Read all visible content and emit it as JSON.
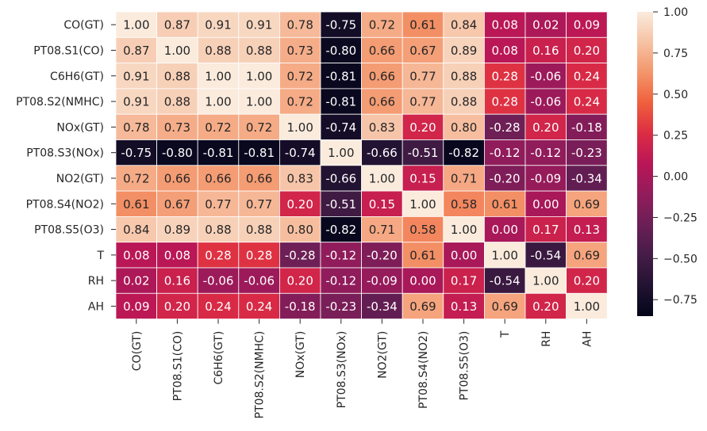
{
  "chart_data": {
    "type": "heatmap",
    "title": "",
    "variables": [
      "CO(GT)",
      "PT08.S1(CO)",
      "C6H6(GT)",
      "PT08.S2(NMHC)",
      "NOx(GT)",
      "PT08.S3(NOx)",
      "NO2(GT)",
      "PT08.S4(NO2)",
      "PT08.S5(O3)",
      "T",
      "RH",
      "AH"
    ],
    "matrix": [
      [
        1.0,
        0.87,
        0.91,
        0.91,
        0.78,
        -0.75,
        0.72,
        0.61,
        0.84,
        0.08,
        0.02,
        0.09
      ],
      [
        0.87,
        1.0,
        0.88,
        0.88,
        0.73,
        -0.8,
        0.66,
        0.67,
        0.89,
        0.08,
        0.16,
        0.2
      ],
      [
        0.91,
        0.88,
        1.0,
        1.0,
        0.72,
        -0.81,
        0.66,
        0.77,
        0.88,
        0.28,
        -0.06,
        0.24
      ],
      [
        0.91,
        0.88,
        1.0,
        1.0,
        0.72,
        -0.81,
        0.66,
        0.77,
        0.88,
        0.28,
        -0.06,
        0.24
      ],
      [
        0.78,
        0.73,
        0.72,
        0.72,
        1.0,
        -0.74,
        0.83,
        0.2,
        0.8,
        -0.28,
        0.2,
        -0.18
      ],
      [
        -0.75,
        -0.8,
        -0.81,
        -0.81,
        -0.74,
        1.0,
        -0.66,
        -0.51,
        -0.82,
        -0.12,
        -0.12,
        -0.23
      ],
      [
        0.72,
        0.66,
        0.66,
        0.66,
        0.83,
        -0.66,
        1.0,
        0.15,
        0.71,
        -0.2,
        -0.09,
        -0.34
      ],
      [
        0.61,
        0.67,
        0.77,
        0.77,
        0.2,
        -0.51,
        0.15,
        1.0,
        0.58,
        0.61,
        -0.0,
        0.69
      ],
      [
        0.84,
        0.89,
        0.88,
        0.88,
        0.8,
        -0.82,
        0.71,
        0.58,
        1.0,
        -0.0,
        0.17,
        0.13
      ],
      [
        0.08,
        0.08,
        0.28,
        0.28,
        -0.28,
        -0.12,
        -0.2,
        0.61,
        -0.0,
        1.0,
        -0.54,
        0.69
      ],
      [
        0.02,
        0.16,
        -0.06,
        -0.06,
        0.2,
        -0.12,
        -0.09,
        -0.0,
        0.17,
        -0.54,
        1.0,
        0.2
      ],
      [
        0.09,
        0.2,
        0.24,
        0.24,
        -0.18,
        -0.23,
        -0.34,
        0.69,
        0.13,
        0.69,
        0.2,
        1.0
      ]
    ],
    "colorbar": {
      "vmin": -0.85,
      "vmax": 1.0,
      "ticks": [
        1.0,
        0.75,
        0.5,
        0.25,
        0.0,
        -0.25,
        -0.5,
        -0.75
      ],
      "tick_labels": [
        "1.00",
        "0.75",
        "0.50",
        "0.25",
        "0.00",
        "−0.25",
        "−0.50",
        "−0.75"
      ]
    },
    "colormap": "rocket",
    "annotations": true,
    "cell_gridlines": "white"
  }
}
